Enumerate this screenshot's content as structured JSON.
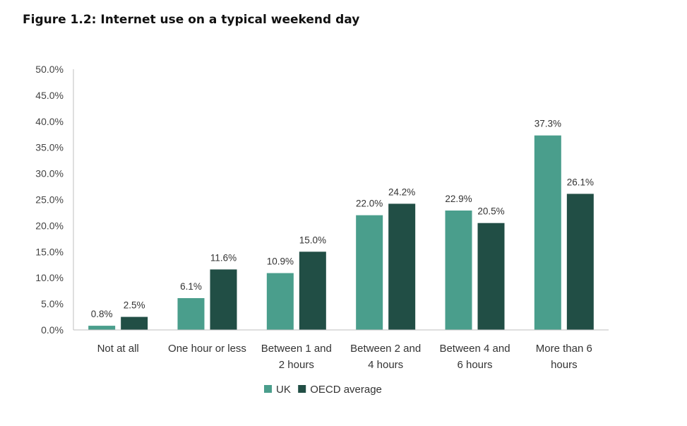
{
  "chart_data": {
    "type": "bar",
    "title": "Figure 1.2: Internet use on a typical weekend day",
    "xlabel": "",
    "ylabel": "",
    "ylim": [
      0,
      50
    ],
    "yticks": [
      "0.0%",
      "5.0%",
      "10.0%",
      "15.0%",
      "20.0%",
      "25.0%",
      "30.0%",
      "35.0%",
      "40.0%",
      "45.0%",
      "50.0%"
    ],
    "categories": [
      [
        "Not at all"
      ],
      [
        "One hour or less"
      ],
      [
        "Between 1 and",
        "2 hours"
      ],
      [
        "Between 2 and",
        "4 hours"
      ],
      [
        "Between 4 and",
        "6 hours"
      ],
      [
        "More than 6",
        "hours"
      ]
    ],
    "series": [
      {
        "name": "UK",
        "color": "#4a9e8c",
        "values": [
          0.8,
          6.1,
          10.9,
          22.0,
          22.9,
          37.3
        ],
        "labels": [
          "0.8%",
          "6.1%",
          "10.9%",
          "22.0%",
          "22.9%",
          "37.3%"
        ]
      },
      {
        "name": "OECD average",
        "color": "#214e45",
        "values": [
          2.5,
          11.6,
          15.0,
          24.2,
          20.5,
          26.1
        ],
        "labels": [
          "2.5%",
          "11.6%",
          "15.0%",
          "24.2%",
          "20.5%",
          "26.1%"
        ]
      }
    ],
    "grid": false,
    "legend": "bottom"
  }
}
